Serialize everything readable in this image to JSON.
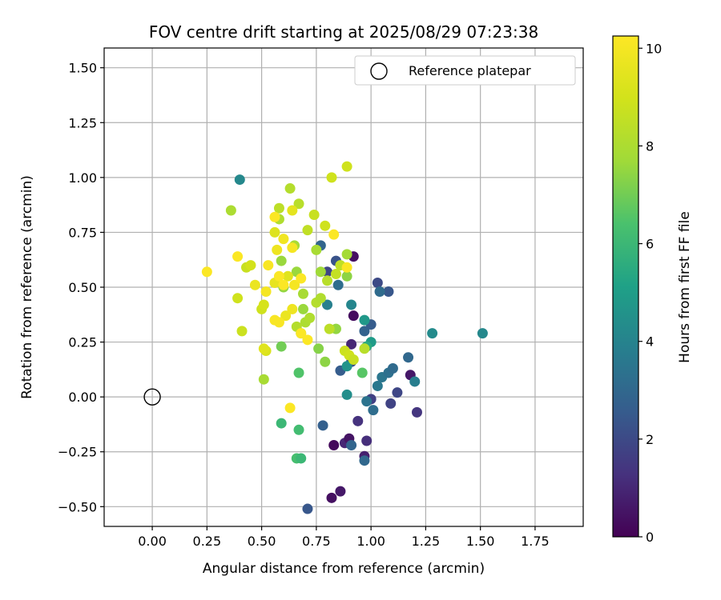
{
  "chart_data": {
    "type": "scatter",
    "title": "FOV centre drift starting at 2025/08/29 07:23:38",
    "xlabel": "Angular distance from reference (arcmin)",
    "ylabel": "Rotation from reference (arcmin)",
    "xlim": [
      -0.22,
      1.97
    ],
    "ylim": [
      -0.59,
      1.59
    ],
    "xticks": [
      "0.00",
      "0.25",
      "0.50",
      "0.75",
      "1.00",
      "1.25",
      "1.50",
      "1.75"
    ],
    "yticks": [
      "−0.50",
      "−0.25",
      "0.00",
      "0.25",
      "0.50",
      "0.75",
      "1.00",
      "1.25",
      "1.50"
    ],
    "grid": true,
    "legend": {
      "position": "top-right",
      "entries": [
        "Reference platepar"
      ]
    },
    "colorbar": {
      "label": "Hours from first FF file",
      "min": 0,
      "max": 10.25,
      "ticks": [
        "0",
        "2",
        "4",
        "6",
        "8",
        "10"
      ],
      "colormap": "viridis"
    },
    "reference_point": {
      "x": 0.0,
      "y": 0.0
    },
    "points": [
      {
        "x": 0.82,
        "y": -0.46,
        "h": 0.4
      },
      {
        "x": 0.86,
        "y": -0.43,
        "h": 0.6
      },
      {
        "x": 0.83,
        "y": -0.22,
        "h": 0.2
      },
      {
        "x": 0.88,
        "y": -0.21,
        "h": 1.0
      },
      {
        "x": 0.9,
        "y": -0.19,
        "h": 0.5
      },
      {
        "x": 0.97,
        "y": -0.27,
        "h": 0.8
      },
      {
        "x": 0.98,
        "y": -0.2,
        "h": 1.2
      },
      {
        "x": 0.94,
        "y": -0.11,
        "h": 1.3
      },
      {
        "x": 1.18,
        "y": 0.1,
        "h": 0.6
      },
      {
        "x": 0.92,
        "y": 0.37,
        "h": 0.3
      },
      {
        "x": 0.92,
        "y": 0.64,
        "h": 0.4
      },
      {
        "x": 0.91,
        "y": 0.24,
        "h": 1.0
      },
      {
        "x": 1.0,
        "y": -0.01,
        "h": 1.7
      },
      {
        "x": 1.09,
        "y": -0.03,
        "h": 1.8
      },
      {
        "x": 1.12,
        "y": 0.02,
        "h": 1.9
      },
      {
        "x": 1.21,
        "y": -0.07,
        "h": 1.4
      },
      {
        "x": 1.03,
        "y": 0.52,
        "h": 2.0
      },
      {
        "x": 1.08,
        "y": 0.48,
        "h": 2.4
      },
      {
        "x": 0.71,
        "y": -0.51,
        "h": 2.4
      },
      {
        "x": 0.78,
        "y": -0.13,
        "h": 2.7
      },
      {
        "x": 0.91,
        "y": -0.22,
        "h": 2.9
      },
      {
        "x": 0.97,
        "y": -0.29,
        "h": 3.0
      },
      {
        "x": 0.97,
        "y": 0.3,
        "h": 2.8
      },
      {
        "x": 1.0,
        "y": 0.33,
        "h": 2.6
      },
      {
        "x": 0.86,
        "y": 0.12,
        "h": 2.6
      },
      {
        "x": 0.91,
        "y": 0.16,
        "h": 2.2
      },
      {
        "x": 0.8,
        "y": 0.57,
        "h": 1.9
      },
      {
        "x": 0.84,
        "y": 0.62,
        "h": 2.3
      },
      {
        "x": 0.77,
        "y": 0.69,
        "h": 2.9
      },
      {
        "x": 1.01,
        "y": -0.06,
        "h": 3.2
      },
      {
        "x": 0.98,
        "y": -0.02,
        "h": 3.4
      },
      {
        "x": 1.03,
        "y": 0.05,
        "h": 3.6
      },
      {
        "x": 1.05,
        "y": 0.09,
        "h": 3.5
      },
      {
        "x": 1.08,
        "y": 0.11,
        "h": 3.3
      },
      {
        "x": 1.1,
        "y": 0.13,
        "h": 3.1
      },
      {
        "x": 1.17,
        "y": 0.18,
        "h": 3.0
      },
      {
        "x": 1.2,
        "y": 0.07,
        "h": 3.8
      },
      {
        "x": 1.04,
        "y": 0.48,
        "h": 3.1
      },
      {
        "x": 0.85,
        "y": 0.51,
        "h": 3.2
      },
      {
        "x": 0.8,
        "y": 0.42,
        "h": 3.9
      },
      {
        "x": 0.4,
        "y": 0.99,
        "h": 4.2
      },
      {
        "x": 1.28,
        "y": 0.29,
        "h": 4.3
      },
      {
        "x": 1.51,
        "y": 0.29,
        "h": 4.2
      },
      {
        "x": 0.89,
        "y": 0.01,
        "h": 4.4
      },
      {
        "x": 0.91,
        "y": 0.42,
        "h": 4.1
      },
      {
        "x": 0.89,
        "y": 0.14,
        "h": 4.6
      },
      {
        "x": 0.97,
        "y": 0.35,
        "h": 4.8
      },
      {
        "x": 1.0,
        "y": 0.25,
        "h": 4.9
      },
      {
        "x": 0.98,
        "y": 0.23,
        "h": 5.5
      },
      {
        "x": 0.59,
        "y": -0.12,
        "h": 6.0
      },
      {
        "x": 0.67,
        "y": -0.15,
        "h": 6.2
      },
      {
        "x": 0.66,
        "y": -0.28,
        "h": 6.3
      },
      {
        "x": 0.68,
        "y": -0.28,
        "h": 6.0
      },
      {
        "x": 0.67,
        "y": 0.11,
        "h": 6.5
      },
      {
        "x": 0.96,
        "y": 0.11,
        "h": 6.6
      },
      {
        "x": 0.59,
        "y": 0.23,
        "h": 7.0
      },
      {
        "x": 0.68,
        "y": 0.29,
        "h": 7.2
      },
      {
        "x": 0.76,
        "y": 0.22,
        "h": 7.3
      },
      {
        "x": 0.79,
        "y": 0.16,
        "h": 7.4
      },
      {
        "x": 0.84,
        "y": 0.31,
        "h": 7.5
      },
      {
        "x": 0.51,
        "y": 0.08,
        "h": 7.9
      },
      {
        "x": 0.6,
        "y": 0.5,
        "h": 7.5
      },
      {
        "x": 0.66,
        "y": 0.57,
        "h": 7.6
      },
      {
        "x": 0.77,
        "y": 0.57,
        "h": 7.7
      },
      {
        "x": 0.89,
        "y": 0.55,
        "h": 7.4
      },
      {
        "x": 0.89,
        "y": 0.65,
        "h": 7.8
      },
      {
        "x": 0.75,
        "y": 0.67,
        "h": 7.9
      },
      {
        "x": 0.59,
        "y": 0.62,
        "h": 7.6
      },
      {
        "x": 0.65,
        "y": 0.69,
        "h": 7.9
      },
      {
        "x": 0.69,
        "y": 0.4,
        "h": 7.6
      },
      {
        "x": 0.69,
        "y": 0.47,
        "h": 7.9
      },
      {
        "x": 0.7,
        "y": 0.34,
        "h": 8.0
      },
      {
        "x": 0.72,
        "y": 0.36,
        "h": 8.1
      },
      {
        "x": 0.66,
        "y": 0.32,
        "h": 8.2
      },
      {
        "x": 0.75,
        "y": 0.43,
        "h": 8.2
      },
      {
        "x": 0.77,
        "y": 0.45,
        "h": 8.1
      },
      {
        "x": 0.8,
        "y": 0.53,
        "h": 8.3
      },
      {
        "x": 0.81,
        "y": 0.31,
        "h": 8.4
      },
      {
        "x": 0.84,
        "y": 0.56,
        "h": 8.6
      },
      {
        "x": 0.86,
        "y": 0.6,
        "h": 8.5
      },
      {
        "x": 0.88,
        "y": 0.21,
        "h": 8.8
      },
      {
        "x": 0.9,
        "y": 0.19,
        "h": 8.9
      },
      {
        "x": 0.92,
        "y": 0.17,
        "h": 8.7
      },
      {
        "x": 0.97,
        "y": 0.22,
        "h": 8.3
      },
      {
        "x": 0.36,
        "y": 0.85,
        "h": 8.0
      },
      {
        "x": 0.58,
        "y": 0.81,
        "h": 8.1
      },
      {
        "x": 0.58,
        "y": 0.86,
        "h": 8.4
      },
      {
        "x": 0.63,
        "y": 0.95,
        "h": 8.2
      },
      {
        "x": 0.67,
        "y": 0.88,
        "h": 8.3
      },
      {
        "x": 0.71,
        "y": 0.76,
        "h": 8.5
      },
      {
        "x": 0.74,
        "y": 0.83,
        "h": 8.7
      },
      {
        "x": 0.79,
        "y": 0.78,
        "h": 8.9
      },
      {
        "x": 0.82,
        "y": 1.0,
        "h": 8.9
      },
      {
        "x": 0.89,
        "y": 1.05,
        "h": 8.9
      },
      {
        "x": 0.41,
        "y": 0.3,
        "h": 8.8
      },
      {
        "x": 0.39,
        "y": 0.45,
        "h": 8.9
      },
      {
        "x": 0.43,
        "y": 0.59,
        "h": 8.7
      },
      {
        "x": 0.45,
        "y": 0.6,
        "h": 9.0
      },
      {
        "x": 0.5,
        "y": 0.4,
        "h": 8.9
      },
      {
        "x": 0.51,
        "y": 0.42,
        "h": 9.1
      },
      {
        "x": 0.52,
        "y": 0.21,
        "h": 9.2
      },
      {
        "x": 0.51,
        "y": 0.22,
        "h": 9.4
      },
      {
        "x": 0.56,
        "y": 0.75,
        "h": 9.3
      },
      {
        "x": 0.62,
        "y": 0.55,
        "h": 9.4
      },
      {
        "x": 0.64,
        "y": 0.85,
        "h": 9.5
      },
      {
        "x": 0.56,
        "y": 0.52,
        "h": 9.6
      },
      {
        "x": 0.47,
        "y": 0.51,
        "h": 9.7
      },
      {
        "x": 0.61,
        "y": 0.37,
        "h": 9.7
      },
      {
        "x": 0.64,
        "y": 0.4,
        "h": 9.8
      },
      {
        "x": 0.57,
        "y": 0.67,
        "h": 9.8
      },
      {
        "x": 0.6,
        "y": 0.72,
        "h": 9.9
      },
      {
        "x": 0.64,
        "y": 0.68,
        "h": 10.0
      },
      {
        "x": 0.65,
        "y": 0.51,
        "h": 10.0
      },
      {
        "x": 0.56,
        "y": 0.35,
        "h": 10.1
      },
      {
        "x": 0.58,
        "y": 0.34,
        "h": 10.1
      },
      {
        "x": 0.52,
        "y": 0.48,
        "h": 10.0
      },
      {
        "x": 0.53,
        "y": 0.6,
        "h": 10.1
      },
      {
        "x": 0.56,
        "y": 0.82,
        "h": 10.2
      },
      {
        "x": 0.58,
        "y": 0.55,
        "h": 10.2
      },
      {
        "x": 0.68,
        "y": 0.54,
        "h": 10.2
      },
      {
        "x": 0.68,
        "y": 0.29,
        "h": 10.2
      },
      {
        "x": 0.71,
        "y": 0.26,
        "h": 10.2
      },
      {
        "x": 0.39,
        "y": 0.64,
        "h": 10.2
      },
      {
        "x": 0.25,
        "y": 0.57,
        "h": 10.2
      },
      {
        "x": 0.63,
        "y": -0.05,
        "h": 10.2
      },
      {
        "x": 0.83,
        "y": 0.74,
        "h": 10.2
      },
      {
        "x": 0.89,
        "y": 0.59,
        "h": 10.2
      },
      {
        "x": 0.6,
        "y": 0.51,
        "h": 10.2
      }
    ]
  }
}
